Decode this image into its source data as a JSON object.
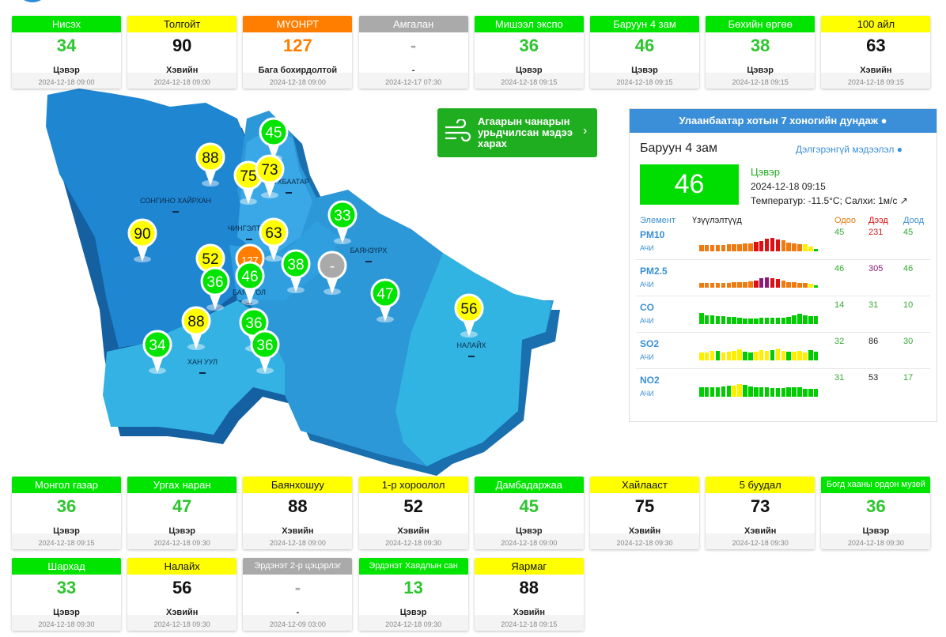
{
  "stations": [
    {
      "name": "Нисэх",
      "value": 34,
      "status": "Цэвэр",
      "date": "2024-12-18 09:00",
      "color": "#00e400"
    },
    {
      "name": "Толгойт",
      "value": 90,
      "status": "Хэвийн",
      "date": "2024-12-18 09:00",
      "color": "#ffff00"
    },
    {
      "name": "МҮОНРТ",
      "value": 127,
      "status": "Бага бохирдолтой",
      "date": "2024-12-18 09:00",
      "color": "#ff7e00"
    },
    {
      "name": "Амгалан",
      "value": "-",
      "status": "-",
      "date": "2024-12-17 07:30",
      "color": "#aaaaaa"
    },
    {
      "name": "Мишээл экспо",
      "value": 36,
      "status": "Цэвэр",
      "date": "2024-12-18 09:15",
      "color": "#00e400"
    },
    {
      "name": "Баруун 4 зам",
      "value": 46,
      "status": "Цэвэр",
      "date": "2024-12-18 09:15",
      "color": "#00e400"
    },
    {
      "name": "Бөхийн өргөө",
      "value": 38,
      "status": "Цэвэр",
      "date": "2024-12-18 09:15",
      "color": "#00e400"
    },
    {
      "name": "100 айл",
      "value": 63,
      "status": "Хэвийн",
      "date": "2024-12-18 09:15",
      "color": "#ffff00"
    },
    {
      "name": "Монгол газар",
      "value": 36,
      "status": "Цэвэр",
      "date": "2024-12-18 09:15",
      "color": "#00e400"
    },
    {
      "name": "Ургах наран",
      "value": 47,
      "status": "Цэвэр",
      "date": "2024-12-18 09:30",
      "color": "#00e400"
    },
    {
      "name": "Баянхошуу",
      "value": 88,
      "status": "Хэвийн",
      "date": "2024-12-18 09:00",
      "color": "#ffff00"
    },
    {
      "name": "1-р хороолол",
      "value": 52,
      "status": "Хэвийн",
      "date": "2024-12-18 09:30",
      "color": "#ffff00"
    },
    {
      "name": "Дамбадаржаа",
      "value": 45,
      "status": "Цэвэр",
      "date": "2024-12-18 09:00",
      "color": "#00e400"
    },
    {
      "name": "Хайлааст",
      "value": 75,
      "status": "Хэвийн",
      "date": "2024-12-18 09:30",
      "color": "#ffff00"
    },
    {
      "name": "5 буудал",
      "value": 73,
      "status": "Хэвийн",
      "date": "2024-12-18 09:30",
      "color": "#ffff00"
    },
    {
      "name": "Богд хааны ордон музей",
      "value": 36,
      "status": "Цэвэр",
      "date": "2024-12-18 09:30",
      "color": "#00e400"
    },
    {
      "name": "Шархад",
      "value": 33,
      "status": "Цэвэр",
      "date": "2024-12-18 09:30",
      "color": "#00e400"
    },
    {
      "name": "Налайх",
      "value": 56,
      "status": "Хэвийн",
      "date": "2024-12-18 09:30",
      "color": "#ffff00"
    },
    {
      "name": "Эрдэнэт 2-р цэцэрлэг",
      "value": "-",
      "status": "-",
      "date": "2024-12-09 03:00",
      "color": "#aaaaaa"
    },
    {
      "name": "Эрдэнэт Хаядлын сан",
      "value": 13,
      "status": "Цэвэр",
      "date": "2024-12-18 09:30",
      "color": "#00e400"
    },
    {
      "name": "Яармаг",
      "value": 88,
      "status": "Хэвийн",
      "date": "2024-12-18 09:15",
      "color": "#ffff00"
    }
  ],
  "map": {
    "districts": [
      "СОНГИНО ХАЙРХАН",
      "ЧИНГЭЛТЭЙ",
      "СҮХБААТАР",
      "БАЯНЗҮРХ",
      "БАЯНГОЛ",
      "ХАН УУЛ",
      "НАЛАЙХ"
    ],
    "markers": [
      {
        "value": 45,
        "color": "#00e400"
      },
      {
        "value": 88,
        "color": "#ffff00"
      },
      {
        "value": 75,
        "color": "#ffff00"
      },
      {
        "value": 73,
        "color": "#ffff00"
      },
      {
        "value": 90,
        "color": "#ffff00"
      },
      {
        "value": 63,
        "color": "#ffff00"
      },
      {
        "value": 52,
        "color": "#ffff00"
      },
      {
        "value": 127,
        "color": "#ff7e00"
      },
      {
        "value": 36,
        "color": "#00e400"
      },
      {
        "value": 46,
        "color": "#00e400"
      },
      {
        "value": 38,
        "color": "#00e400"
      },
      {
        "value": "-",
        "color": "#aaaaaa"
      },
      {
        "value": 33,
        "color": "#00e400"
      },
      {
        "value": 47,
        "color": "#00e400"
      },
      {
        "value": 56,
        "color": "#ffff00"
      },
      {
        "value": 88,
        "color": "#ffff00"
      },
      {
        "value": 36,
        "color": "#00e400"
      },
      {
        "value": 34,
        "color": "#00e400"
      },
      {
        "value": 36,
        "color": "#00e400"
      }
    ]
  },
  "banner": "Агаарын чанарын урьдчилсан мэдээ харах",
  "panel": {
    "header": "Улаанбаатар хотын 7 хоногийн дундаж",
    "station": "Баруун 4 зам",
    "link": "Дэлгэрэнгүй мэдээлэл",
    "value": 46,
    "status": "Цэвэр",
    "date": "2024-12-18 09:15",
    "weather": "Температур: -11.5°C; Салхи: 1м/с",
    "columns": [
      "Элемент",
      "Үзүүлэлтүүд",
      "Одоо",
      "Дээд",
      "Доод"
    ],
    "palette": [
      "#00cc00",
      "#ffee00",
      "#f07a10",
      "#dd1111",
      "#8b1a7a"
    ],
    "rows": [
      {
        "name": "PM10",
        "unit": "АЧИ",
        "now": 45,
        "max": 231,
        "min": 45,
        "colors": [
          "#33aa33",
          "#cc2222",
          "#33aa33"
        ],
        "bars": [
          8,
          8,
          8,
          8,
          8,
          9,
          9,
          9,
          10,
          10,
          12,
          13,
          16,
          17,
          15,
          14,
          11,
          10,
          9,
          9,
          6,
          3
        ],
        "levels": [
          2,
          2,
          2,
          2,
          2,
          2,
          2,
          2,
          2,
          2,
          3,
          3,
          3,
          3,
          3,
          2,
          2,
          2,
          2,
          1,
          1,
          0
        ]
      },
      {
        "name": "PM2.5",
        "unit": "АЧИ",
        "now": 46,
        "max": 305,
        "min": 46,
        "colors": [
          "#33aa33",
          "#8b1a7a",
          "#33aa33"
        ],
        "bars": [
          6,
          6,
          6,
          6,
          6,
          6,
          7,
          7,
          7,
          8,
          9,
          12,
          13,
          12,
          11,
          9,
          7,
          7,
          6,
          6,
          5,
          3
        ],
        "levels": [
          2,
          2,
          2,
          2,
          2,
          2,
          2,
          2,
          2,
          2,
          3,
          4,
          4,
          3,
          3,
          2,
          2,
          2,
          2,
          2,
          1,
          0
        ]
      },
      {
        "name": "CO",
        "unit": "АЧИ",
        "now": 14,
        "max": 31,
        "min": 10,
        "colors": [
          "#33aa33",
          "#33aa33",
          "#33aa33"
        ],
        "bars": [
          14,
          11,
          11,
          10,
          10,
          9,
          9,
          8,
          7,
          7,
          7,
          8,
          8,
          8,
          8,
          8,
          9,
          11,
          13,
          11,
          10,
          10
        ],
        "levels": [
          0,
          0,
          0,
          0,
          0,
          0,
          0,
          0,
          0,
          0,
          0,
          0,
          0,
          0,
          0,
          0,
          0,
          0,
          0,
          0,
          0,
          0
        ]
      },
      {
        "name": "SO2",
        "unit": "АЧИ",
        "now": 32,
        "max": 86,
        "min": 30,
        "colors": [
          "#33aa33",
          "#222222",
          "#33aa33"
        ],
        "bars": [
          10,
          10,
          12,
          12,
          10,
          11,
          12,
          14,
          11,
          10,
          11,
          13,
          12,
          13,
          15,
          12,
          11,
          11,
          12,
          10,
          13,
          11
        ],
        "levels": [
          1,
          1,
          1,
          0,
          1,
          1,
          1,
          1,
          0,
          0,
          1,
          1,
          1,
          0,
          1,
          1,
          0,
          1,
          1,
          1,
          0,
          0
        ]
      },
      {
        "name": "NO2",
        "unit": "АЧИ",
        "now": 31,
        "max": 53,
        "min": 17,
        "colors": [
          "#33aa33",
          "#222222",
          "#33aa33"
        ],
        "bars": [
          12,
          12,
          12,
          12,
          13,
          14,
          14,
          16,
          15,
          13,
          12,
          12,
          12,
          11,
          11,
          11,
          12,
          12,
          12,
          10,
          10,
          10
        ],
        "levels": [
          0,
          0,
          0,
          0,
          0,
          0,
          1,
          1,
          0,
          0,
          0,
          0,
          0,
          0,
          0,
          0,
          0,
          0,
          0,
          0,
          0,
          0
        ]
      }
    ]
  }
}
